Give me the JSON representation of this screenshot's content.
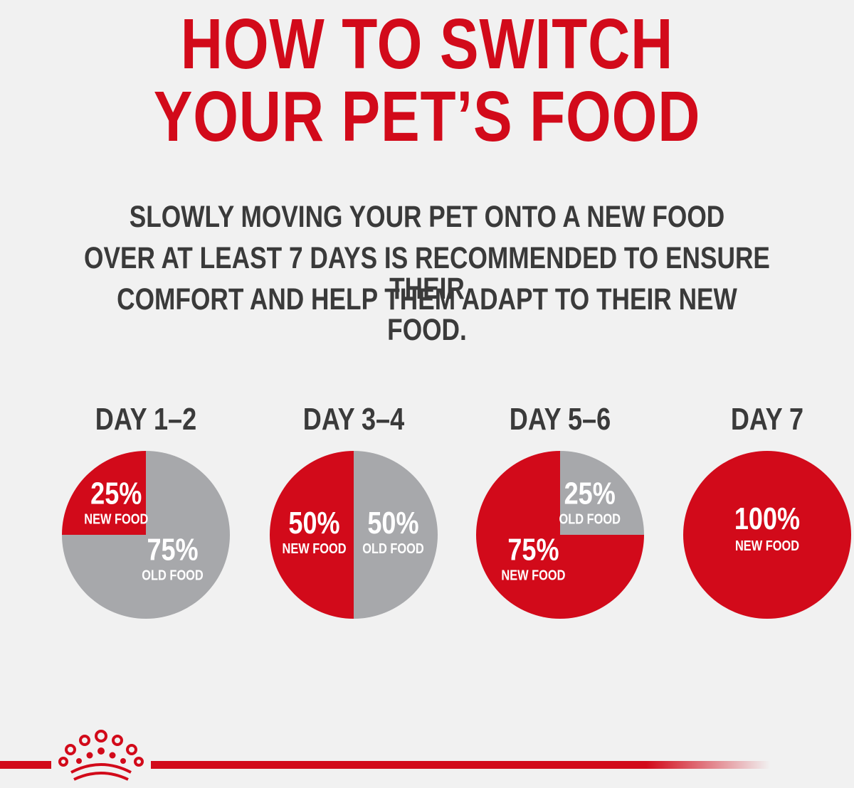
{
  "header": {
    "title_line1": "HOW TO SWITCH",
    "title_line2": "YOUR PET’S FOOD",
    "subtitle_line1": "SLOWLY MOVING YOUR PET ONTO A NEW FOOD",
    "subtitle_line2": "OVER AT LEAST 7 DAYS IS RECOMMENDED TO ENSURE THEIR",
    "subtitle_line3": "COMFORT AND HELP THEM ADAPT TO THEIR NEW FOOD."
  },
  "colors": {
    "new_food": "#d20a1a",
    "old_food": "#a7a8ab",
    "text_dark": "#3a3a3a",
    "background": "#f1f1f1"
  },
  "logo": {
    "name": "crown-logo"
  },
  "chart_data": {
    "type": "pie",
    "charts": [
      {
        "title": "DAY 1–2",
        "slices": [
          {
            "label": "NEW FOOD",
            "value": 25,
            "display": "25%"
          },
          {
            "label": "OLD FOOD",
            "value": 75,
            "display": "75%"
          }
        ]
      },
      {
        "title": "DAY 3–4",
        "slices": [
          {
            "label": "NEW FOOD",
            "value": 50,
            "display": "50%"
          },
          {
            "label": "OLD FOOD",
            "value": 50,
            "display": "50%"
          }
        ]
      },
      {
        "title": "DAY 5–6",
        "slices": [
          {
            "label": "NEW FOOD",
            "value": 75,
            "display": "75%"
          },
          {
            "label": "OLD FOOD",
            "value": 25,
            "display": "25%"
          }
        ]
      },
      {
        "title": "DAY 7",
        "slices": [
          {
            "label": "NEW FOOD",
            "value": 100,
            "display": "100%"
          }
        ]
      }
    ]
  }
}
